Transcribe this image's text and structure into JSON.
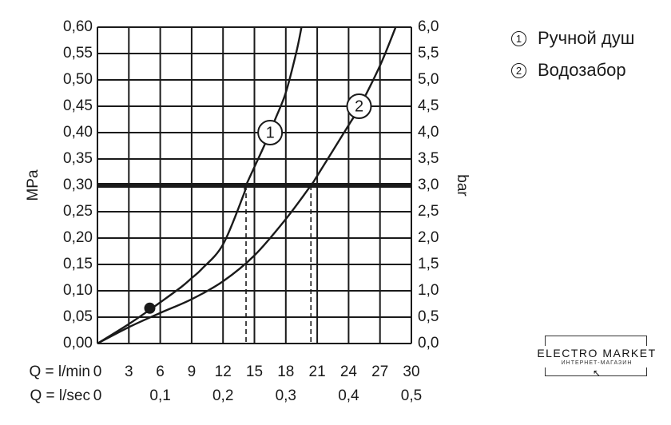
{
  "legend": {
    "items": [
      {
        "num": "1",
        "label": "Ручной душ"
      },
      {
        "num": "2",
        "label": "Водозабор"
      }
    ]
  },
  "logo": {
    "text": "ELECTRO MARKET",
    "subtext": "ИНТЕРНЕТ-МАГАЗИН"
  },
  "colors": {
    "line": "#1a1a1a",
    "background": "#ffffff"
  },
  "chart_data": {
    "type": "line",
    "title": "",
    "ylabel": "MPa",
    "ylabel_right": "bar",
    "xlabel": "Q = l/min",
    "xlabel_secondary": "Q = l/sec",
    "xlim": [
      0,
      30
    ],
    "ylim": [
      0,
      0.6
    ],
    "ylim_right": [
      0,
      6
    ],
    "grid": true,
    "x_ticks": [
      0,
      3,
      6,
      9,
      12,
      15,
      18,
      21,
      24,
      27,
      30
    ],
    "x_tick_labels": [
      "0",
      "3",
      "6",
      "9",
      "12",
      "15",
      "18",
      "21",
      "24",
      "27",
      "30"
    ],
    "x2_ticks": [
      0,
      6,
      12,
      18,
      24,
      30
    ],
    "x2_tick_labels": [
      "0",
      "0,1",
      "0,2",
      "0,3",
      "0,4",
      "0,5"
    ],
    "y_ticks": [
      0,
      0.05,
      0.1,
      0.15,
      0.2,
      0.25,
      0.3,
      0.35,
      0.4,
      0.45,
      0.5,
      0.55,
      0.6
    ],
    "y_tick_labels": [
      "0,00",
      "0,05",
      "0,10",
      "0,15",
      "0,20",
      "0,25",
      "0,30",
      "0,35",
      "0,40",
      "0,45",
      "0,50",
      "0,55",
      "0,60"
    ],
    "y2_tick_labels": [
      "0,0",
      "0,5",
      "1,0",
      "1,5",
      "2,0",
      "2,5",
      "3,0",
      "3,5",
      "4,0",
      "4,5",
      "5,0",
      "5,5",
      "6,0"
    ],
    "reference_line": {
      "y": 0.3
    },
    "dashed_guides": [
      {
        "x": 14.2
      },
      {
        "x": 20.4
      }
    ],
    "marker_point": {
      "x": 5,
      "y": 0.067
    },
    "series": [
      {
        "name": "1",
        "x": [
          0,
          3,
          5,
          6,
          8,
          9,
          10,
          12,
          14,
          14.2,
          16,
          17,
          18,
          19,
          19.5
        ],
        "y": [
          0,
          0.037,
          0.064,
          0.078,
          0.107,
          0.124,
          0.142,
          0.188,
          0.284,
          0.3,
          0.378,
          0.426,
          0.476,
          0.552,
          0.6
        ]
      },
      {
        "name": "2",
        "x": [
          0,
          3,
          6,
          9,
          12,
          15,
          18,
          20.4,
          21,
          24,
          25,
          27,
          28.5
        ],
        "y": [
          0,
          0.031,
          0.058,
          0.084,
          0.118,
          0.167,
          0.236,
          0.3,
          0.318,
          0.414,
          0.447,
          0.527,
          0.6
        ]
      }
    ],
    "series_label_positions": [
      {
        "x": 16.5,
        "y": 0.4
      },
      {
        "x": 25,
        "y": 0.45
      }
    ]
  }
}
